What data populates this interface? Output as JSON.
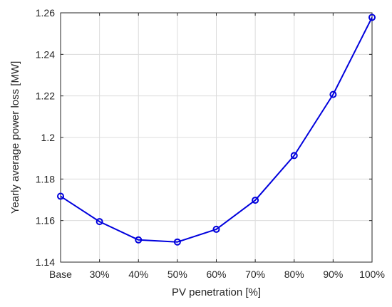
{
  "chart_data": {
    "type": "line",
    "categories": [
      "Base",
      "30%",
      "40%",
      "50%",
      "60%",
      "70%",
      "80%",
      "90%",
      "100%"
    ],
    "series": [
      {
        "values": [
          1.1717,
          1.1595,
          1.1507,
          1.1497,
          1.1558,
          1.1698,
          1.1913,
          1.2207,
          1.2578
        ],
        "color": "#0000dd",
        "marker": "circle"
      }
    ],
    "xlabel": "PV penetration [%]",
    "ylabel": "Yearly average power loss [MW]",
    "ylim": [
      1.14,
      1.26
    ],
    "yticks": [
      1.14,
      1.16,
      1.18,
      1.2,
      1.22,
      1.24,
      1.26
    ],
    "ytick_labels": [
      "1.14",
      "1.16",
      "1.18",
      "1.2",
      "1.22",
      "1.24",
      "1.26"
    ],
    "grid": true
  }
}
